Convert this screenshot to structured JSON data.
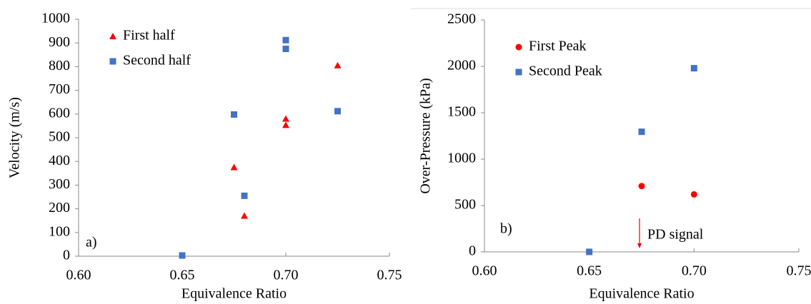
{
  "chart_data": [
    {
      "type": "scatter",
      "y_label": "Velocity (m/s)",
      "x_label": "Equivalence Ratio",
      "annotation": "a)",
      "xlim": [
        0.6,
        0.75
      ],
      "xticks": [
        {
          "value": 0.6,
          "label": "0.60"
        },
        {
          "value": 0.65,
          "label": "0.65"
        },
        {
          "value": 0.7,
          "label": "0.70"
        },
        {
          "value": 0.75,
          "label": "0.75"
        }
      ],
      "ylim": [
        0,
        1000
      ],
      "yticks": [
        0,
        100,
        200,
        300,
        400,
        500,
        600,
        700,
        800,
        900,
        1000
      ],
      "series": [
        {
          "name": "First half",
          "color": "#ff0000",
          "marker": "triangle",
          "x": [
            0.675,
            0.68,
            0.7,
            0.7,
            0.725
          ],
          "values": [
            375,
            170,
            580,
            553,
            805
          ]
        },
        {
          "name": "Second half",
          "color": "#4472c4",
          "marker": "square",
          "x": [
            0.65,
            0.675,
            0.68,
            0.7,
            0.7,
            0.725
          ],
          "values": [
            3,
            598,
            255,
            912,
            875,
            612
          ]
        }
      ]
    },
    {
      "type": "scatter",
      "y_label": "Over-Pressure (kPa)",
      "x_label": "Equivalence Ratio",
      "annotation": "b)",
      "note": "PD signal",
      "xlim": [
        0.6,
        0.75
      ],
      "xticks": [
        {
          "value": 0.6,
          "label": "0.60"
        },
        {
          "value": 0.65,
          "label": "0.65"
        },
        {
          "value": 0.7,
          "label": "0.70"
        },
        {
          "value": 0.75,
          "label": "0.75"
        }
      ],
      "ylim": [
        0,
        2500
      ],
      "yticks": [
        0,
        500,
        1000,
        1500,
        2000,
        2500
      ],
      "series": [
        {
          "name": "First Peak",
          "color": "#ff0000",
          "marker": "circle",
          "x": [
            0.675,
            0.7
          ],
          "values": [
            710,
            620
          ]
        },
        {
          "name": "Second Peak",
          "color": "#4472c4",
          "marker": "square",
          "x": [
            0.65,
            0.675,
            0.7
          ],
          "values": [
            0,
            1295,
            1980
          ]
        }
      ]
    }
  ]
}
